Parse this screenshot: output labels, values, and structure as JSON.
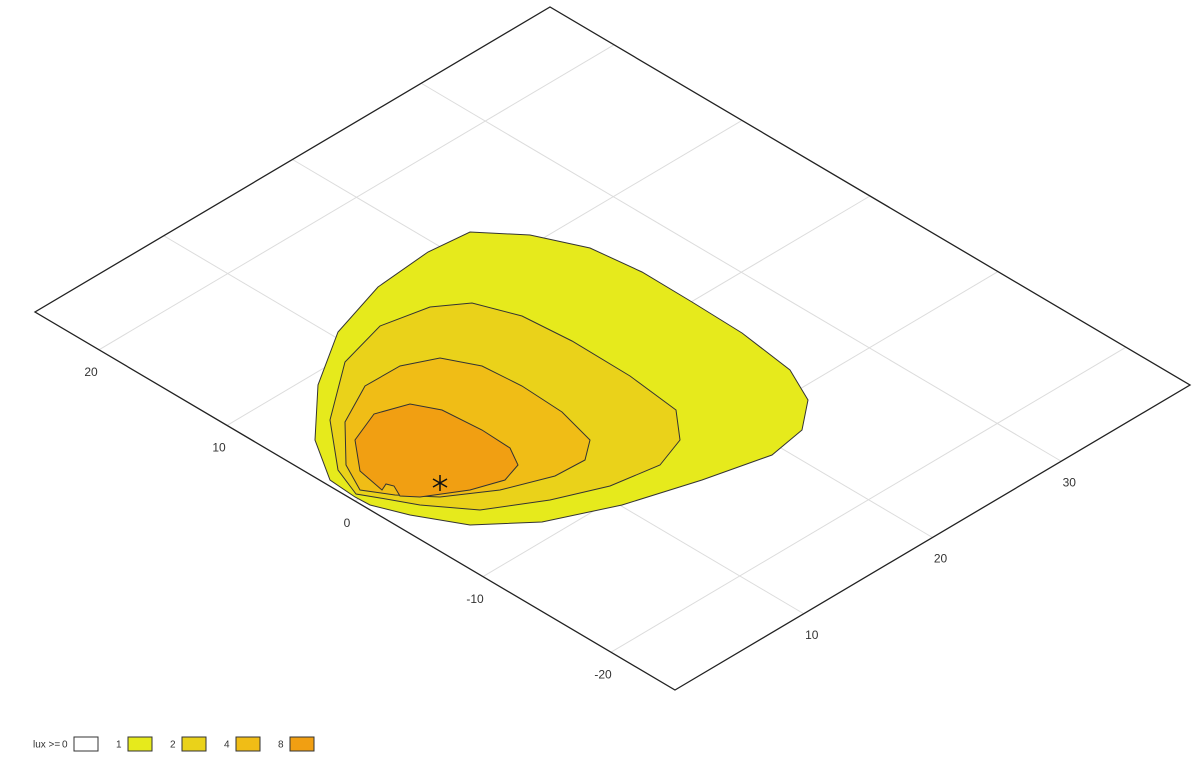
{
  "chart_data": {
    "type": "contour",
    "legend_title": "lux >=",
    "levels": [
      0,
      1,
      2,
      4,
      8
    ],
    "colors": [
      "#ffffff",
      "#e6ea1c",
      "#ead21a",
      "#f0bd16",
      "#f19f12"
    ],
    "xlim": [
      0,
      40
    ],
    "xticks": [
      10,
      20,
      30
    ],
    "ylim": [
      -25,
      25
    ],
    "yticks": [
      -20,
      -10,
      0,
      10,
      20
    ],
    "grid": true
  }
}
